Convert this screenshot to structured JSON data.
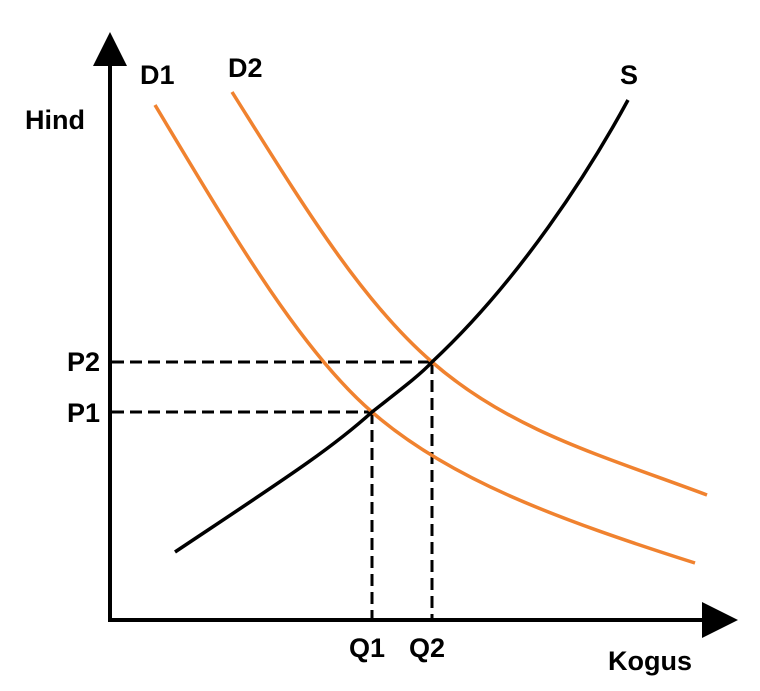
{
  "axes": {
    "y_label": "Hind",
    "x_label": "Kogus"
  },
  "curves": {
    "demand_1": "D1",
    "demand_2": "D2",
    "supply": "S"
  },
  "prices": [
    "P2",
    "P1"
  ],
  "quantities": [
    "Q1",
    "Q2"
  ]
}
